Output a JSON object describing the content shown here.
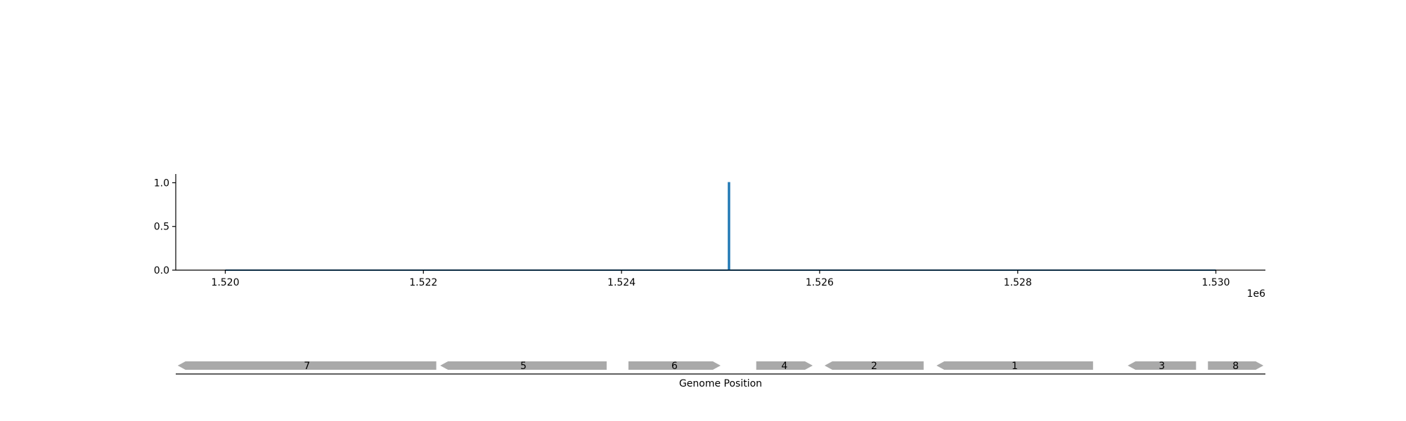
{
  "chart_data": {
    "type": "line",
    "x_offset_label": "1e6",
    "xlabel": "Genome Position",
    "xlim": [
      1519500,
      1530500
    ],
    "ylim": [
      0.0,
      1.1
    ],
    "x_ticks": [
      1520000,
      1522000,
      1524000,
      1526000,
      1528000,
      1530000
    ],
    "x_tick_labels": [
      "1.520",
      "1.522",
      "1.524",
      "1.526",
      "1.528",
      "1.530"
    ],
    "y_ticks": [
      0.0,
      0.5,
      1.0
    ],
    "y_tick_labels": [
      "0.0",
      "0.5",
      "1.0"
    ],
    "grid": false,
    "series": [
      {
        "color": "#1f77b4",
        "x": [
          1520000,
          1525080,
          1525080,
          1525090,
          1525090,
          1530000
        ],
        "y": [
          0,
          0,
          1.0,
          1.0,
          0,
          0
        ]
      }
    ],
    "genes": [
      {
        "label": "7",
        "start": 1519520,
        "end": 1522130,
        "strand": "-"
      },
      {
        "label": "5",
        "start": 1522170,
        "end": 1523850,
        "strand": "-"
      },
      {
        "label": "6",
        "start": 1524070,
        "end": 1525000,
        "strand": "+"
      },
      {
        "label": "4",
        "start": 1525360,
        "end": 1525930,
        "strand": "+"
      },
      {
        "label": "2",
        "start": 1526050,
        "end": 1527050,
        "strand": "-"
      },
      {
        "label": "1",
        "start": 1527180,
        "end": 1528760,
        "strand": "-"
      },
      {
        "label": "3",
        "start": 1529110,
        "end": 1529800,
        "strand": "-"
      },
      {
        "label": "8",
        "start": 1529920,
        "end": 1530480,
        "strand": "+"
      }
    ],
    "gene_color": "#a9a9a9"
  }
}
